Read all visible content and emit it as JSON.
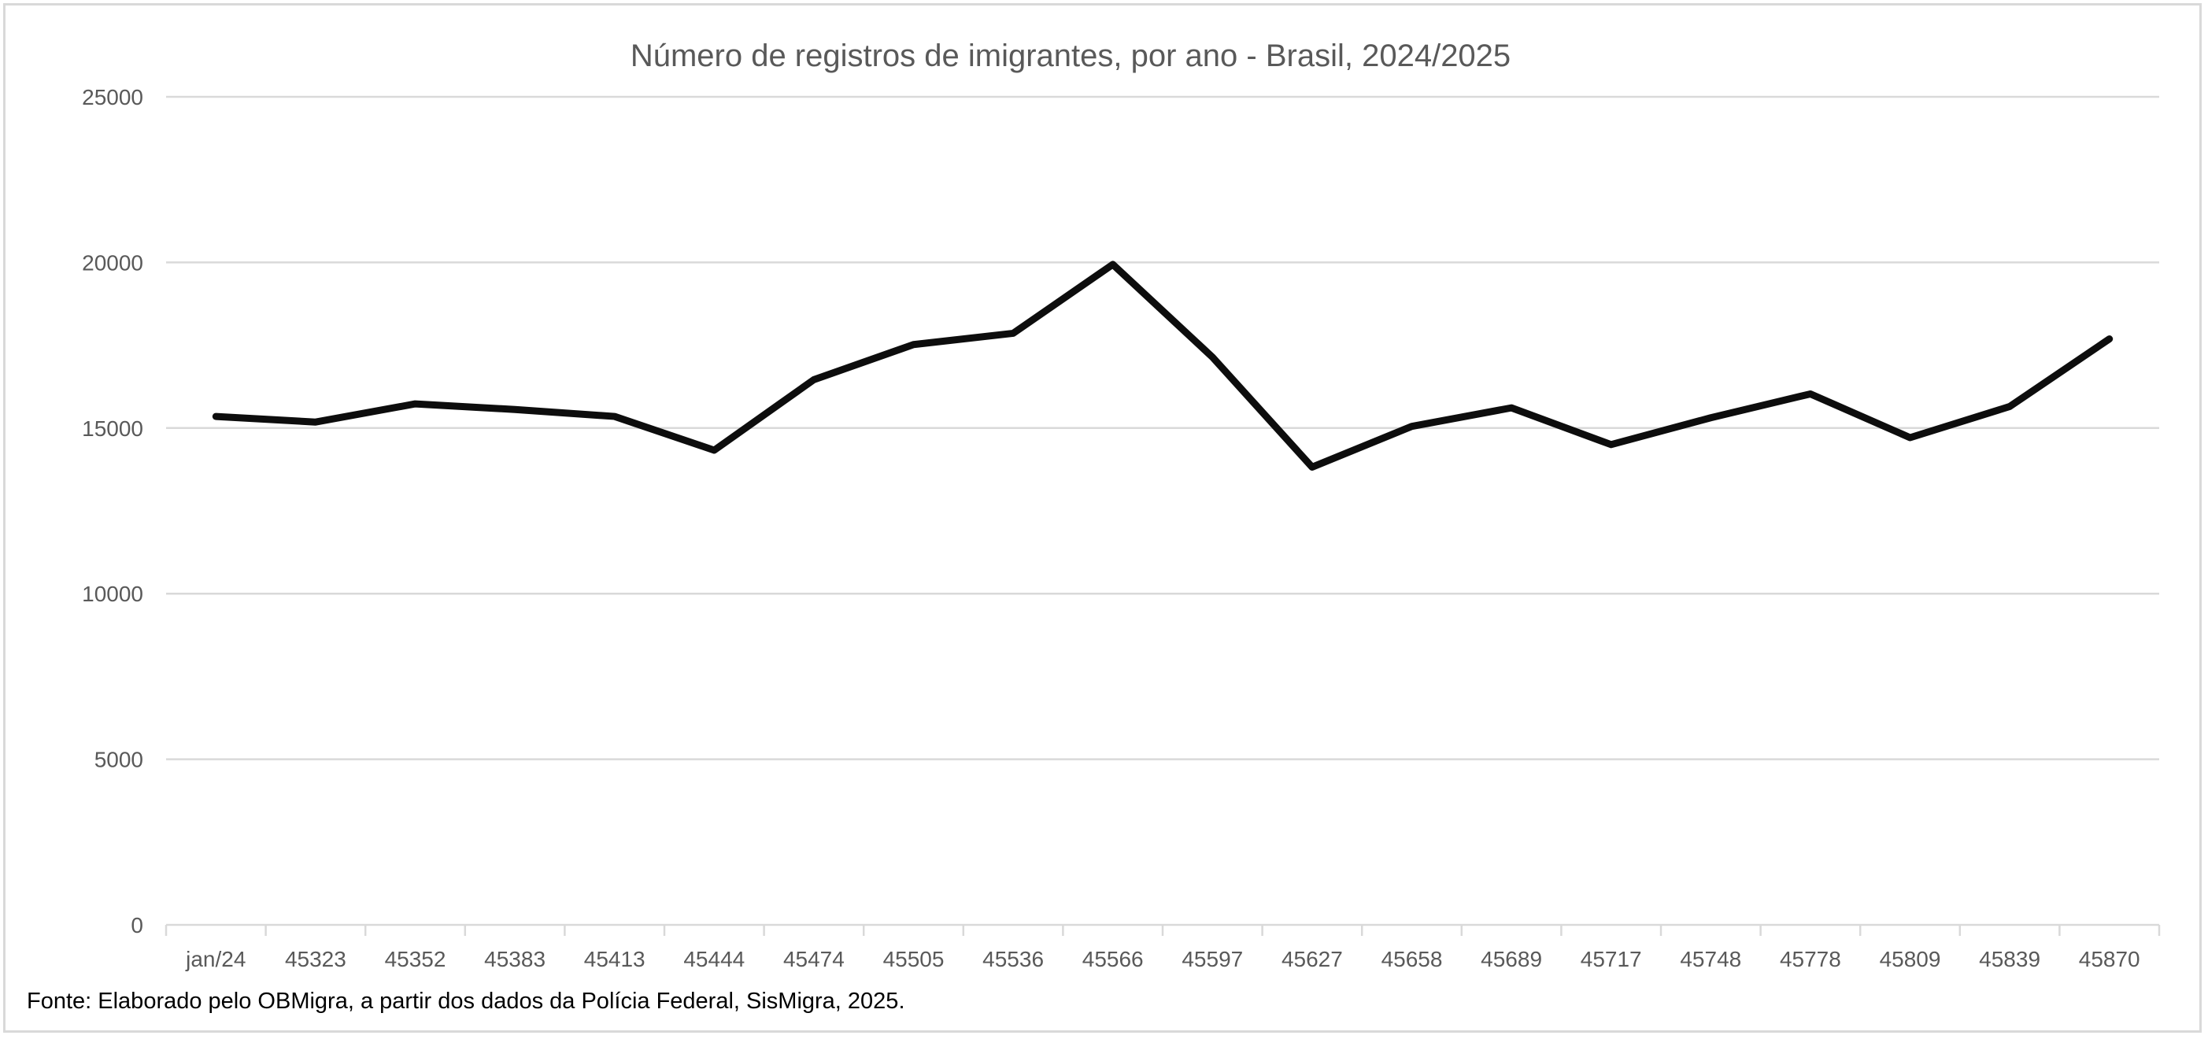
{
  "chart_data": {
    "type": "line",
    "title": "Número de registros de imigrantes, por ano - Brasil, 2024/2025",
    "xlabel": "",
    "ylabel": "",
    "categories": [
      "jan/24",
      "45323",
      "45352",
      "45383",
      "45413",
      "45444",
      "45474",
      "45505",
      "45536",
      "45566",
      "45597",
      "45627",
      "45658",
      "45689",
      "45717",
      "45748",
      "45778",
      "45809",
      "45839",
      "45870"
    ],
    "values": [
      15350,
      15180,
      15730,
      15560,
      15350,
      14330,
      16460,
      17520,
      17860,
      19940,
      17140,
      13820,
      15050,
      15610,
      14500,
      15310,
      16030,
      14710,
      15650,
      17690
    ],
    "ylim": [
      0,
      25000
    ],
    "yticks": [
      "0",
      "5000",
      "10000",
      "15000",
      "20000",
      "25000"
    ],
    "grid": true,
    "legend": "none",
    "line_color": "#0d0d0d",
    "grid_color": "#d9d9d9"
  },
  "footer": "Fonte: Elaborado pelo OBMigra, a partir dos dados da Polícia Federal, SisMigra, 2025."
}
